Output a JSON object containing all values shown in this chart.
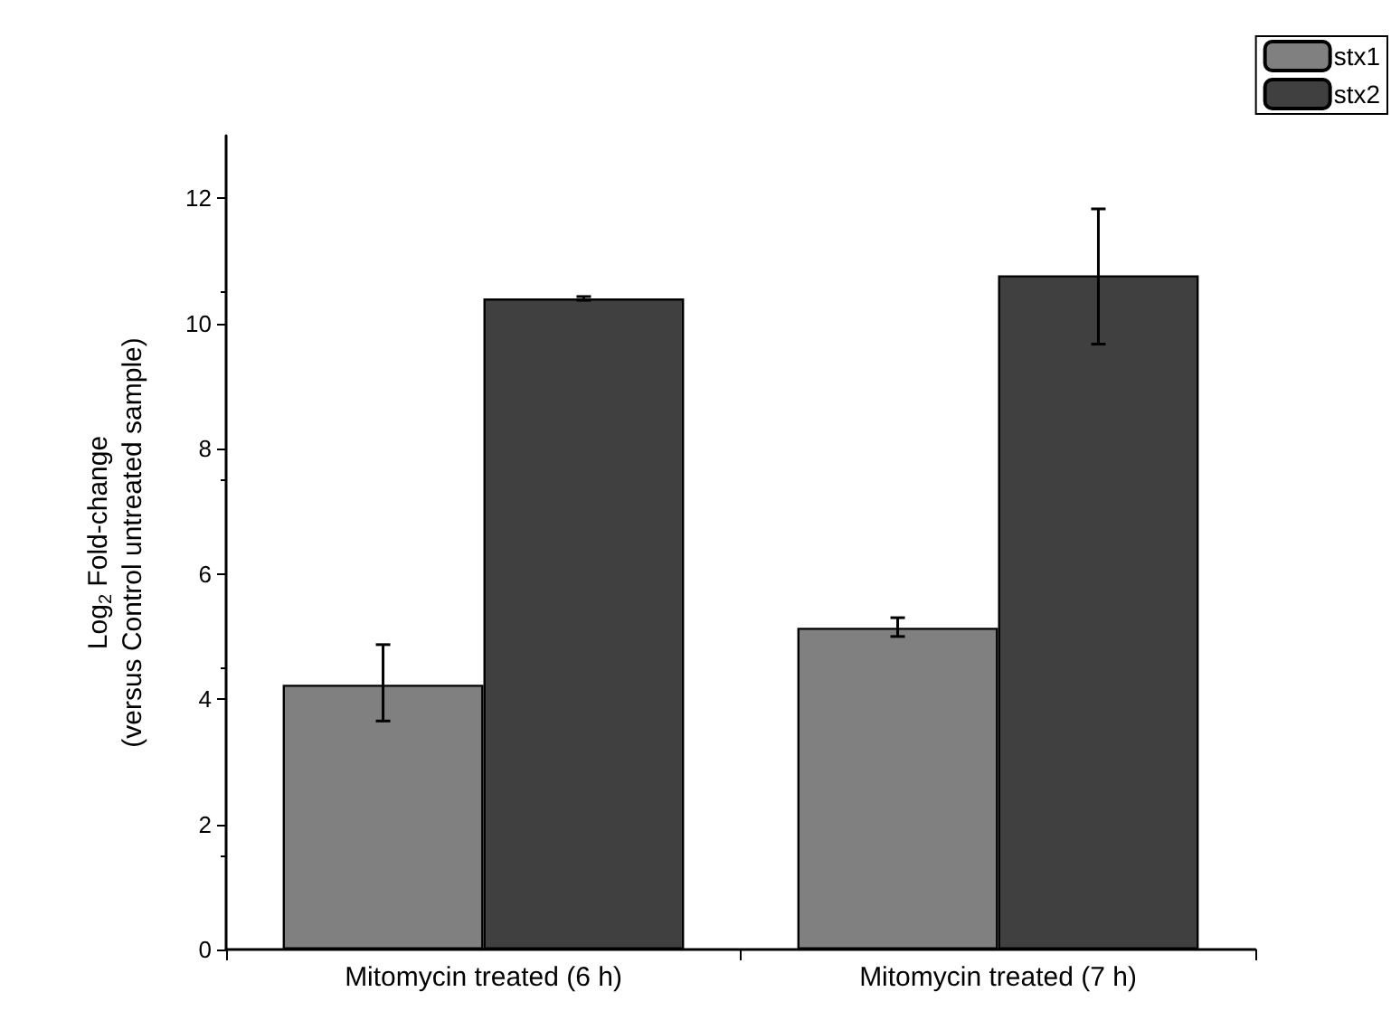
{
  "chart_data": {
    "type": "bar",
    "ylabel": "Log$_{2}$ Fold-change\n(versus Control untreated sample)",
    "categories": [
      "Mitomycin treated (6 h)",
      "Mitomycin treated (7 h)"
    ],
    "series": [
      {
        "name": "stx1",
        "color": "#808080",
        "values": [
          4.23,
          5.14
        ],
        "errors": [
          [
            3.65,
            4.87
          ],
          [
            5.0,
            5.3
          ]
        ]
      },
      {
        "name": "stx2",
        "color": "#404040",
        "values": [
          10.4,
          10.77
        ],
        "errors": [
          [
            10.37,
            10.43
          ],
          [
            9.67,
            11.83
          ]
        ]
      }
    ],
    "ylim": [
      0,
      13
    ],
    "yticks": [
      0,
      2,
      4,
      6,
      8,
      10,
      12
    ],
    "grid": false,
    "legend": "top right"
  }
}
